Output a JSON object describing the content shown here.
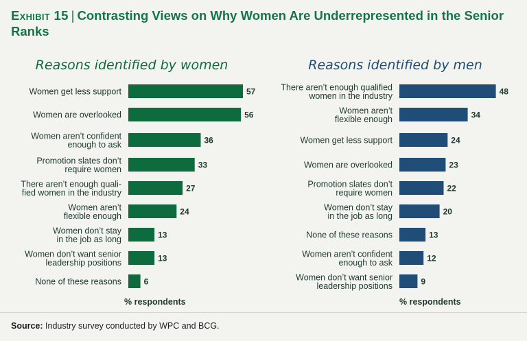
{
  "exhibit": {
    "label": "Exhibit 15",
    "separator": "|",
    "title": "Contrasting Views on Why Women Are Underrepresented in the Senior Ranks"
  },
  "footnote": {
    "label": "Source:",
    "text": "Industry survey conducted by WPC and BCG."
  },
  "colors": {
    "title": "#157548",
    "women_bar": "#0d6b3e",
    "men_bar": "#1f4d78",
    "background": "#f3f3ef"
  },
  "chart_data": [
    {
      "type": "bar",
      "orientation": "horizontal",
      "title": "Reasons identified by women",
      "xlabel": "% respondents",
      "xlim": [
        0,
        60
      ],
      "grid": false,
      "categories": [
        [
          "Women get less support"
        ],
        [
          "Women are overlooked"
        ],
        [
          "Women aren’t confident",
          "enough to ask"
        ],
        [
          "Promotion slates don’t",
          "require women"
        ],
        [
          "There aren’t enough quali-",
          "fied women in the industry"
        ],
        [
          "Women aren’t",
          "flexible enough"
        ],
        [
          "Women don’t stay",
          "in the job as long"
        ],
        [
          "Women don’t want senior",
          "leadership positions"
        ],
        [
          "None of these reasons"
        ]
      ],
      "values": [
        57,
        56,
        36,
        33,
        27,
        24,
        13,
        13,
        6
      ]
    },
    {
      "type": "bar",
      "orientation": "horizontal",
      "title": "Reasons identified by men",
      "xlabel": "% respondents",
      "xlim": [
        0,
        60
      ],
      "grid": false,
      "categories": [
        [
          "There aren’t enough qualified",
          "women in the industry"
        ],
        [
          "Women aren’t",
          "flexible enough"
        ],
        [
          "Women get less support"
        ],
        [
          "Women are overlooked"
        ],
        [
          "Promotion slates don’t",
          "require women"
        ],
        [
          "Women don’t stay",
          "in the job as long"
        ],
        [
          "None of these reasons"
        ],
        [
          "Women aren’t confident",
          "enough to ask"
        ],
        [
          "Women don’t want senior",
          "leadership positions"
        ]
      ],
      "values": [
        48,
        34,
        24,
        23,
        22,
        20,
        13,
        12,
        9
      ]
    }
  ]
}
